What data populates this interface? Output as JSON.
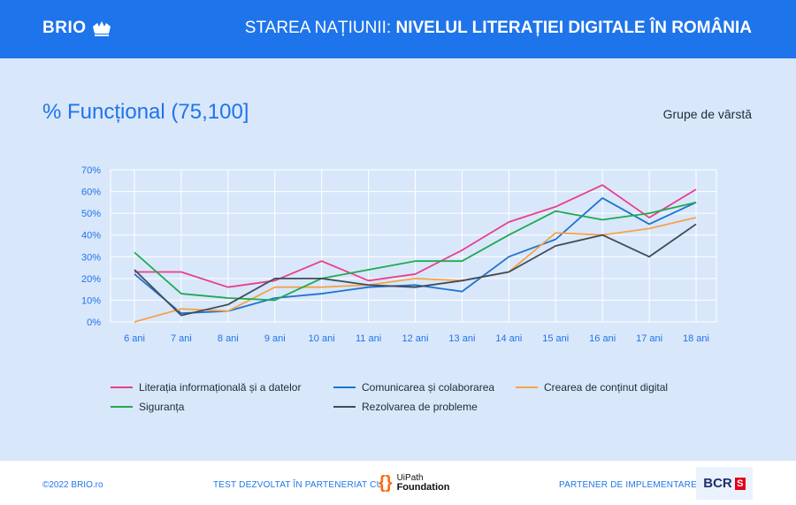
{
  "header": {
    "logo_text": "BRIO",
    "title_light": "STAREA NAȚIUNII: ",
    "title_bold": "NIVELUL LITERAȚIEI DIGITALE ÎN ROMÂNIA"
  },
  "page": {
    "title": "% Funcțional (75,100]",
    "subtitle": "Grupe de vârstă"
  },
  "footer": {
    "copyright": "©2022  BRIO.ro",
    "test_text": "TEST DEZVOLTAT ÎN PARTENERIAT CU",
    "uipath_line1": "UiPath",
    "uipath_line2": "Foundation",
    "partner_text": "PARTENER DE IMPLEMENTARE",
    "bcr_text": "BCR"
  },
  "colors": {
    "header_bg": "#1e74ea",
    "page_bg": "#d9e7fb",
    "grid": "#ffffff"
  },
  "chart_data": {
    "type": "line",
    "title": "% Funcțional (75,100]",
    "legend_title": "Grupe de vârstă",
    "categories": [
      "6 ani",
      "7 ani",
      "8 ani",
      "9 ani",
      "10 ani",
      "11 ani",
      "12 ani",
      "13 ani",
      "14 ani",
      "15 ani",
      "16 ani",
      "17 ani",
      "18 ani"
    ],
    "y_ticks": [
      "0%",
      "10%",
      "20%",
      "30%",
      "40%",
      "50%",
      "60%",
      "70%"
    ],
    "ylim": [
      0,
      70
    ],
    "series": [
      {
        "name": "Literația informațională și a datelor",
        "color": "#e8408a",
        "values": [
          23,
          23,
          16,
          19,
          28,
          19,
          22,
          33,
          46,
          53,
          63,
          48,
          61
        ]
      },
      {
        "name": "Comunicarea și colaborarea",
        "color": "#1e73d0",
        "values": [
          22,
          4,
          5,
          11,
          13,
          16,
          17,
          14,
          30,
          38,
          57,
          45,
          55
        ]
      },
      {
        "name": "Crearea de conținut digital",
        "color": "#f3a447",
        "values": [
          0,
          6,
          5,
          16,
          16,
          17,
          20,
          19,
          23,
          41,
          40,
          43,
          48
        ]
      },
      {
        "name": "Siguranța",
        "color": "#1faa4f",
        "values": [
          32,
          13,
          11,
          10,
          20,
          24,
          28,
          28,
          40,
          51,
          47,
          50,
          55
        ]
      },
      {
        "name": "Rezolvarea de probleme",
        "color": "#424b57",
        "values": [
          24,
          3,
          8,
          20,
          20,
          17,
          16,
          19,
          23,
          35,
          40,
          30,
          45
        ]
      }
    ]
  }
}
